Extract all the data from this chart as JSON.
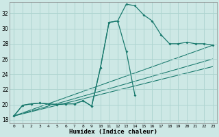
{
  "xlabel": "Humidex (Indice chaleur)",
  "bg_color": "#cde8e5",
  "grid_color": "#aed4d0",
  "line_color": "#1a7a6e",
  "ylim": [
    17.5,
    33.5
  ],
  "xlim": [
    -0.5,
    23.5
  ],
  "yticks": [
    18,
    20,
    22,
    24,
    26,
    28,
    30,
    32
  ],
  "xticks": [
    0,
    1,
    2,
    3,
    4,
    5,
    6,
    7,
    8,
    9,
    10,
    11,
    12,
    13,
    14,
    15,
    16,
    17,
    18,
    19,
    20,
    21,
    22,
    23
  ],
  "curve1_x": [
    0,
    1,
    2,
    3,
    4,
    5,
    6,
    7,
    8,
    9,
    10,
    11,
    12,
    13,
    14,
    15,
    16,
    17,
    18,
    19,
    20,
    21,
    22,
    23
  ],
  "curve1_y": [
    18.5,
    19.9,
    20.1,
    20.2,
    20.1,
    20.0,
    20.1,
    20.1,
    20.5,
    19.8,
    24.8,
    30.8,
    31.0,
    33.2,
    33.0,
    31.8,
    31.0,
    29.2,
    28.0,
    28.0,
    28.2,
    28.0,
    28.0,
    27.8
  ],
  "curve2_x": [
    0,
    1,
    2,
    3,
    4,
    5,
    6,
    7,
    8,
    9,
    10,
    11,
    12,
    13,
    14
  ],
  "curve2_y": [
    18.5,
    19.9,
    20.1,
    20.2,
    20.1,
    20.0,
    20.1,
    20.1,
    20.5,
    19.8,
    24.8,
    30.8,
    31.0,
    27.0,
    21.2
  ],
  "trend_lines": [
    {
      "x": [
        0,
        23
      ],
      "y": [
        18.5,
        27.8
      ]
    },
    {
      "x": [
        0,
        23
      ],
      "y": [
        18.5,
        26.0
      ]
    },
    {
      "x": [
        0,
        23
      ],
      "y": [
        18.5,
        25.0
      ]
    }
  ]
}
